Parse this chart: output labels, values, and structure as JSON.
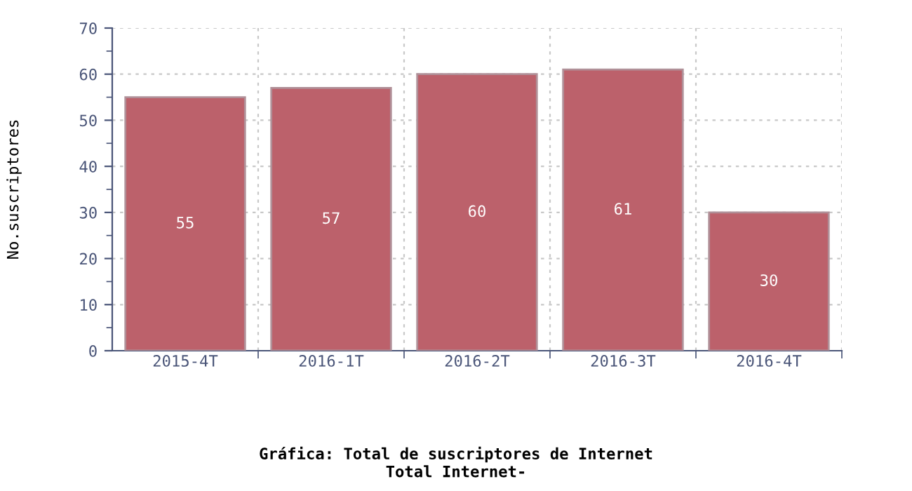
{
  "chart_data": {
    "type": "bar",
    "title": "Gráfica: Total de suscriptores de Internet",
    "subtitle": "Total Internet-",
    "ylabel": "No.suscriptores",
    "categories": [
      "2015-4T",
      "2016-1T",
      "2016-2T",
      "2016-3T",
      "2016-4T"
    ],
    "values": [
      55,
      57,
      60,
      61,
      30
    ],
    "color": "#bc616b",
    "ylim": [
      0,
      70
    ],
    "yticks": [
      0,
      10,
      20,
      30,
      40,
      50,
      60,
      70
    ],
    "grid": true,
    "data_labels": true
  }
}
